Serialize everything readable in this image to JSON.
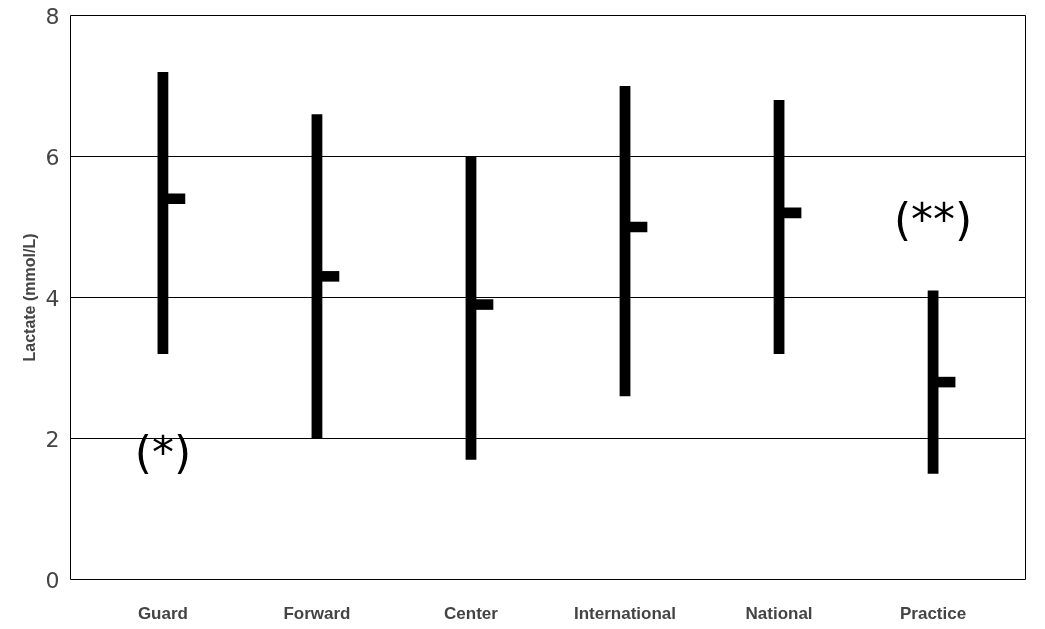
{
  "chart_data": {
    "type": "bar",
    "ylabel": "Lactate (mmol/L)",
    "categories": [
      "Guard",
      "Forward",
      "Center",
      "International",
      "National",
      "Practice"
    ],
    "series": [
      {
        "color": "#000000",
        "base": [
          3.2,
          2.0,
          1.7,
          2.6,
          3.2,
          1.5
        ],
        "values": [
          4.0,
          4.6,
          4.3,
          4.4,
          3.6,
          2.6
        ]
      },
      {
        "type": "scatter",
        "color": "#000000",
        "marker": "square",
        "values": [
          5.4,
          4.3,
          3.9,
          5.0,
          5.2,
          2.8
        ]
      }
    ],
    "ylim": [
      0,
      8
    ],
    "yticks": [
      0,
      2,
      4,
      6,
      8
    ],
    "grid": "y",
    "annotations": [
      "(*)",
      "(**)"
    ]
  }
}
